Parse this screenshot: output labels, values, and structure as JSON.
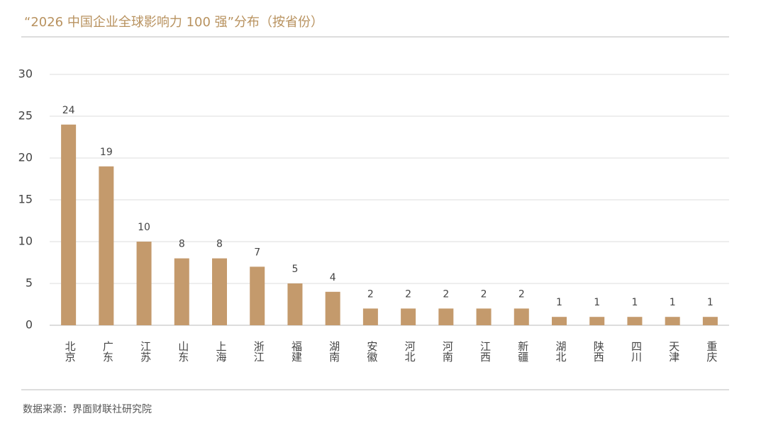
{
  "chart_data": {
    "type": "bar",
    "title": "“2026 中国企业全球影响力 100 强”分布（按省份）",
    "source": "数据来源：界面财联社研究院",
    "categories": [
      "北京",
      "广东",
      "江苏",
      "山东",
      "上海",
      "浙江",
      "福建",
      "湖南",
      "安徽",
      "河北",
      "河南",
      "江西",
      "新疆",
      "湖北",
      "陕西",
      "四川",
      "天津",
      "重庆"
    ],
    "values": [
      24,
      19,
      10,
      8,
      8,
      7,
      5,
      4,
      2,
      2,
      2,
      2,
      2,
      1,
      1,
      1,
      1,
      1
    ],
    "color": "#c49a6c",
    "ylim": [
      0,
      30
    ],
    "yticks": [
      0,
      5,
      10,
      15,
      20,
      25,
      30
    ],
    "grid": true
  }
}
